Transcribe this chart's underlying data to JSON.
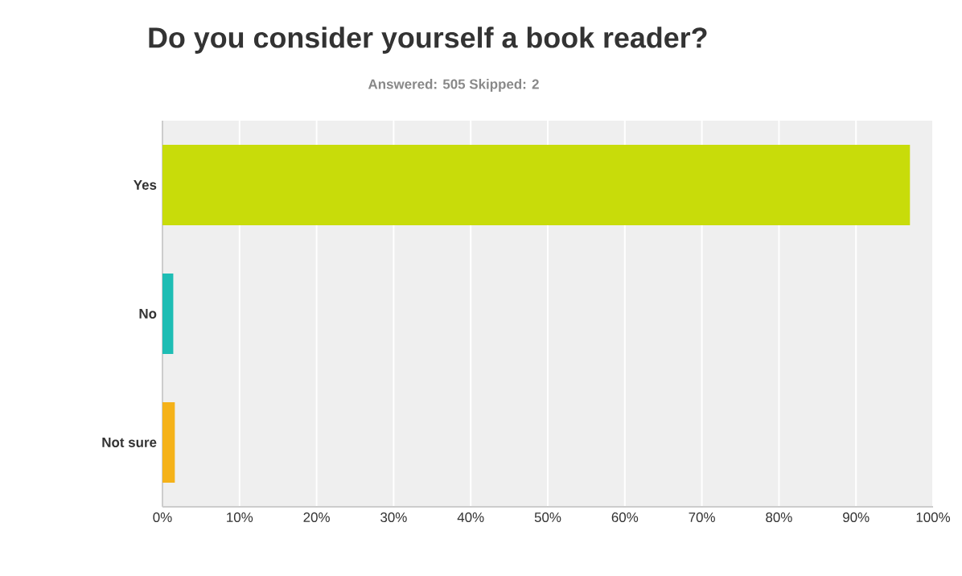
{
  "chart_data": {
    "type": "bar",
    "orientation": "horizontal",
    "title": "Do you consider yourself a book reader?",
    "subtitle": "Answered: 505    Skipped: 2",
    "categories": [
      "Yes",
      "No",
      "Not sure"
    ],
    "values": [
      97.0,
      1.4,
      1.6
    ],
    "colors": [
      "#c8dc0a",
      "#1ebdb4",
      "#f5b219"
    ],
    "xlim": [
      0,
      100
    ],
    "xticks": [
      {
        "value": 0,
        "label": "0%"
      },
      {
        "value": 10,
        "label": "10%"
      },
      {
        "value": 20,
        "label": "20%"
      },
      {
        "value": 30,
        "label": "30%"
      },
      {
        "value": 40,
        "label": "40%"
      },
      {
        "value": 50,
        "label": "50%"
      },
      {
        "value": 60,
        "label": "60%"
      },
      {
        "value": 70,
        "label": "70%"
      },
      {
        "value": 80,
        "label": "80%"
      },
      {
        "value": 90,
        "label": "90%"
      },
      {
        "value": 100,
        "label": "100%"
      }
    ],
    "grid": "x"
  }
}
